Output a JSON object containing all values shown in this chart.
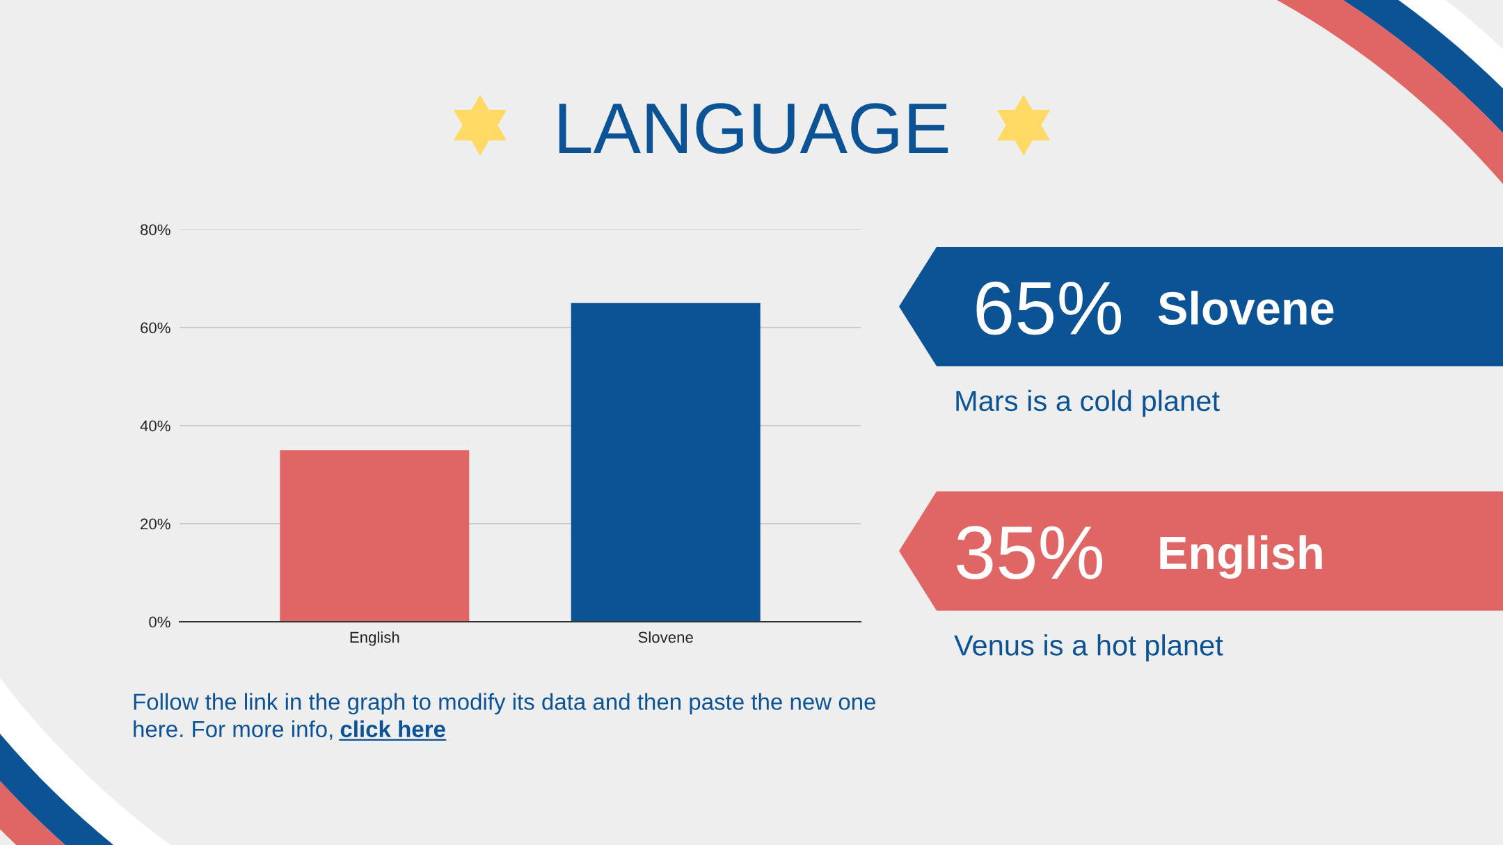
{
  "chart_data": [
    {
      "type": "bar",
      "title": "LANGUAGE",
      "categories": [
        "English",
        "Slovene"
      ],
      "values": [
        35,
        65
      ],
      "colors": [
        "#e06666",
        "#0b5394"
      ],
      "ylim": [
        0,
        80
      ],
      "yticks": [
        {
          "value": 0,
          "label": "0%"
        },
        {
          "value": 20,
          "label": "20%"
        },
        {
          "value": 40,
          "label": "40%"
        },
        {
          "value": 60,
          "label": "60%"
        },
        {
          "value": 80,
          "label": "80%"
        }
      ],
      "grid": "y",
      "annotations": [
        "Follow the link in the graph to modify its data and then paste the new one",
        "here. For more info,",
        "click here"
      ]
    },
    {
      "type": "other",
      "annotations": [
        "65%",
        "Slovene",
        "Mars is a cold planet",
        "35%",
        "English",
        "Venus is a hot planet"
      ]
    }
  ]
}
